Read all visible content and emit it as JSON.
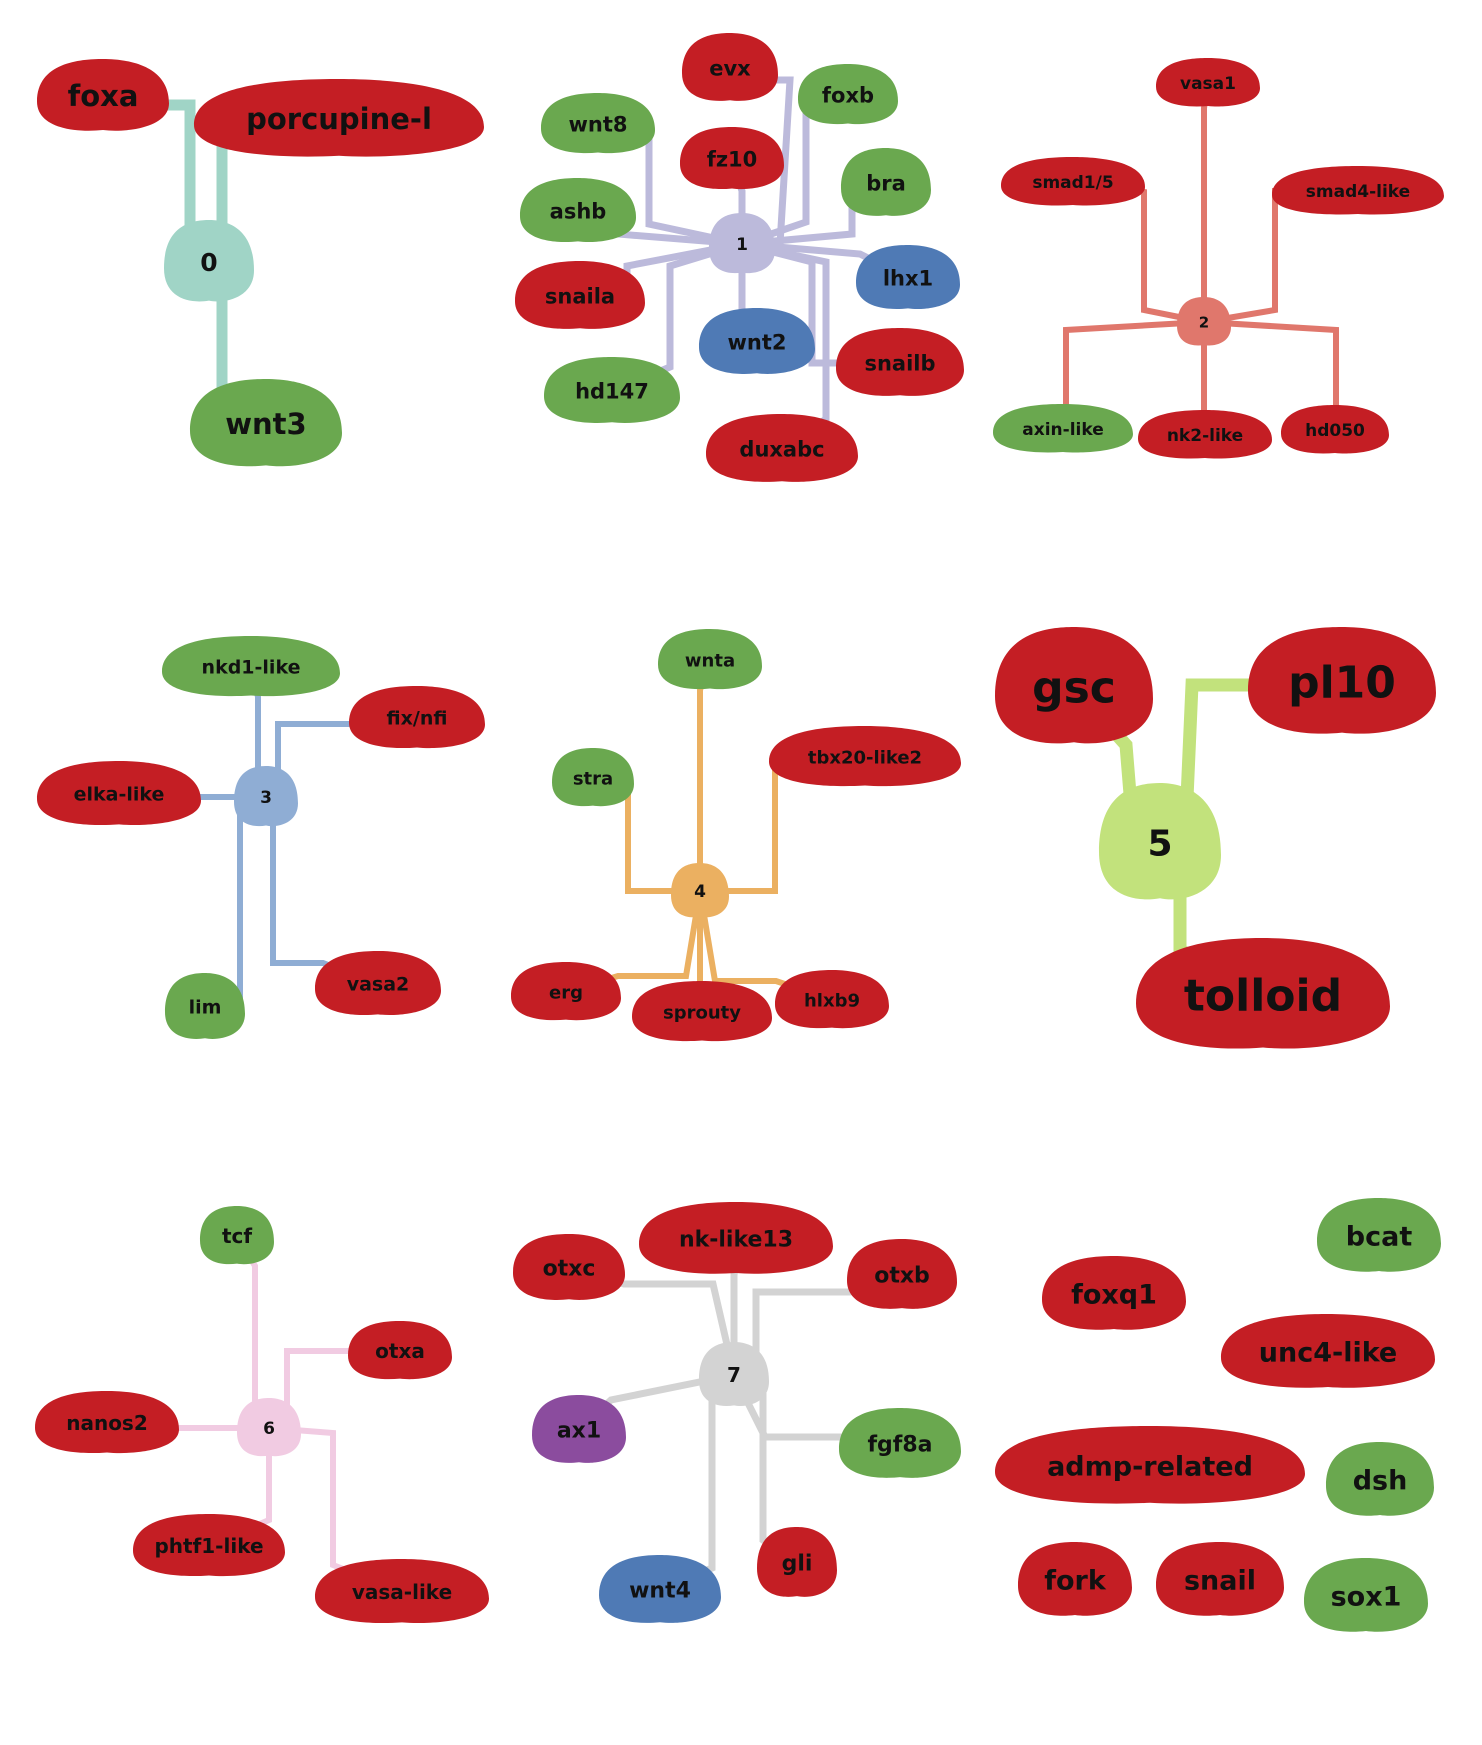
{
  "colors": {
    "red": "#c41e24",
    "green": "#6aa84f",
    "blue": "#4f7ab5",
    "purple": "#8b4c9e"
  },
  "modules": [
    {
      "id": "0",
      "color": "#a0d4c6",
      "genes": [
        "foxa",
        "porcupine-l",
        "wnt3"
      ]
    },
    {
      "id": "1",
      "color": "#bcbadb",
      "genes": [
        "evx",
        "wnt8",
        "foxb",
        "fz10",
        "bra",
        "ashb",
        "lhx1",
        "snaila",
        "wnt2",
        "snailb",
        "hd147",
        "duxabc"
      ]
    },
    {
      "id": "2",
      "color": "#e0776c",
      "genes": [
        "vasa1",
        "smad1/5",
        "smad4-like",
        "axin-like",
        "nk2-like",
        "hd050"
      ]
    },
    {
      "id": "3",
      "color": "#8fadd4",
      "genes": [
        "nkd1-like",
        "fix/nfi",
        "elka-like",
        "lim",
        "vasa2"
      ]
    },
    {
      "id": "4",
      "color": "#ebb061",
      "genes": [
        "wnta",
        "tbx20-like2",
        "stra",
        "erg",
        "sprouty",
        "hlxb9"
      ]
    },
    {
      "id": "5",
      "color": "#c2e27c",
      "genes": [
        "gsc",
        "pl10",
        "tolloid"
      ]
    },
    {
      "id": "6",
      "color": "#f1cbe2",
      "genes": [
        "tcf",
        "otxa",
        "nanos2",
        "phtf1-like",
        "vasa-like"
      ]
    },
    {
      "id": "7",
      "color": "#d3d3d3",
      "genes": [
        "otxc",
        "nk-like13",
        "otxb",
        "ax1",
        "fgf8a",
        "wnt4",
        "gli"
      ]
    }
  ],
  "unconnected_genes": [
    "bcat",
    "foxq1",
    "unc4-like",
    "admp-related",
    "dsh",
    "fork",
    "snail",
    "sox1"
  ]
}
